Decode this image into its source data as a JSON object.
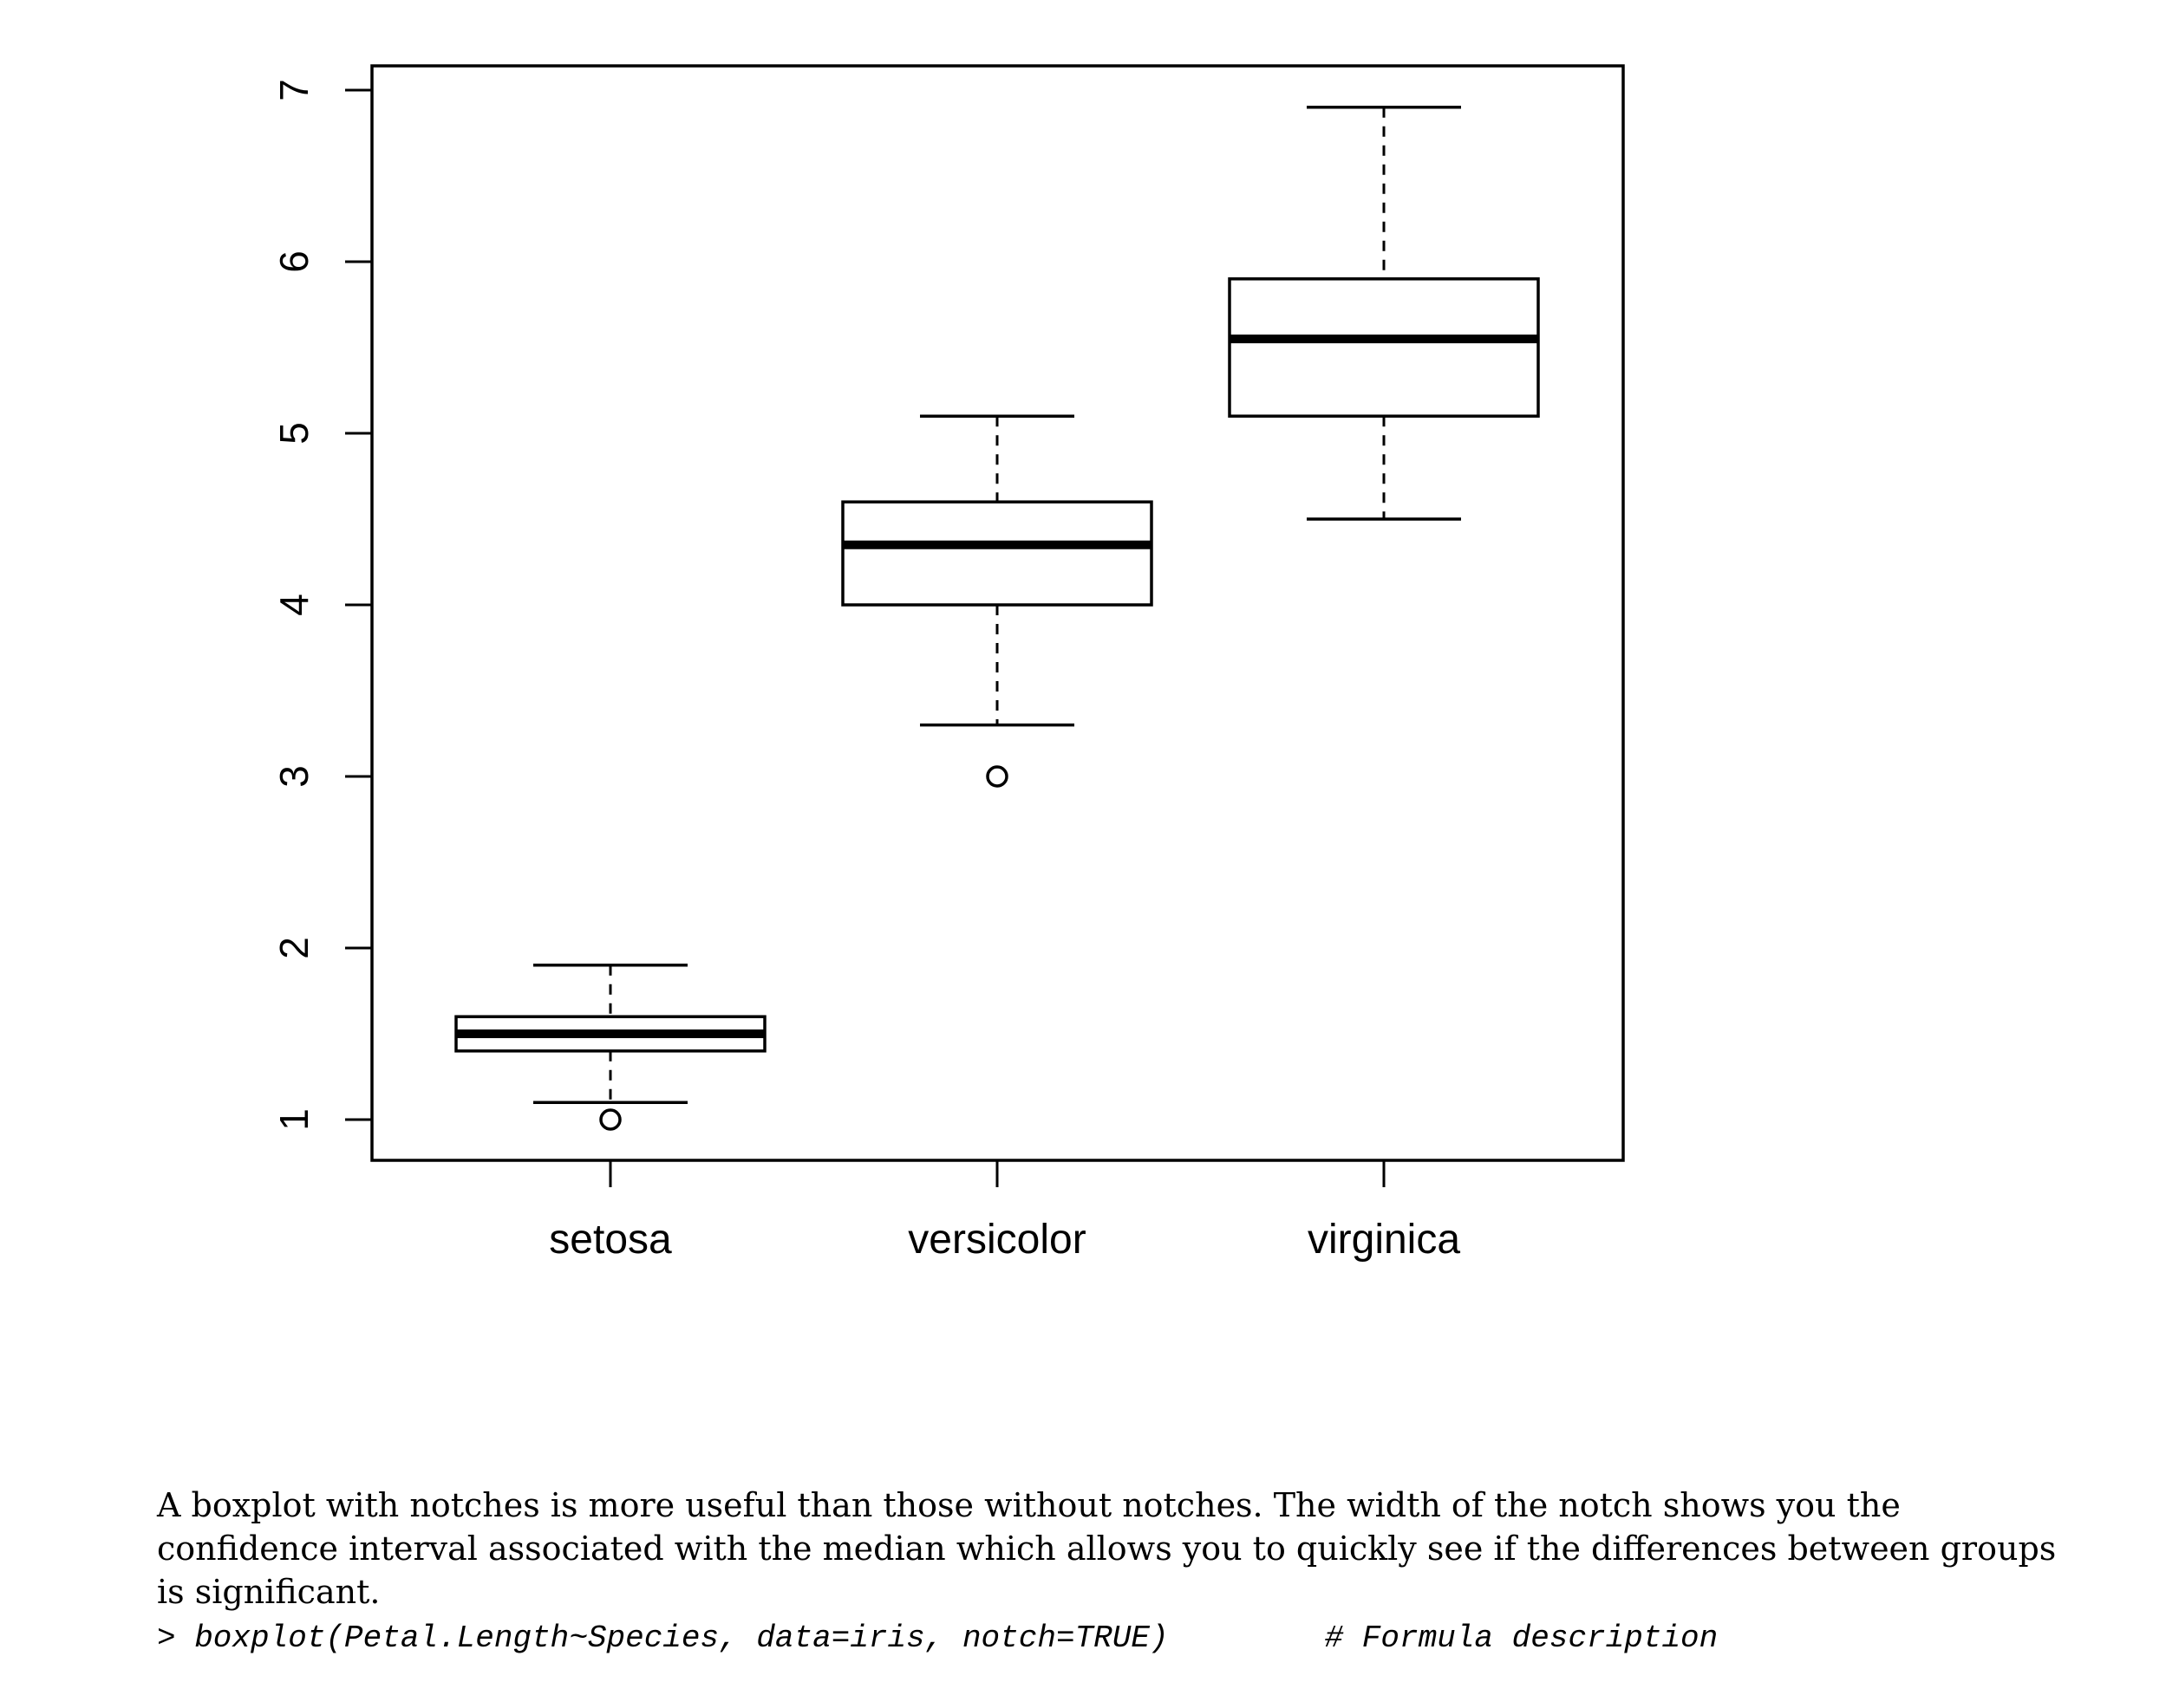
{
  "chart_data": {
    "type": "boxplot",
    "title": "",
    "xlabel": "",
    "ylabel": "",
    "ylim": [
      0.77,
      7.13
    ],
    "yticks": [
      1,
      2,
      3,
      4,
      5,
      6,
      7
    ],
    "categories": [
      "setosa",
      "versicolor",
      "virginica"
    ],
    "boxes": [
      {
        "name": "setosa",
        "whisker_low": 1.1,
        "q1": 1.4,
        "median": 1.5,
        "q3": 1.6,
        "whisker_high": 1.9,
        "outliers": [
          1.0
        ]
      },
      {
        "name": "versicolor",
        "whisker_low": 3.3,
        "q1": 4.0,
        "median": 4.35,
        "q3": 4.6,
        "whisker_high": 5.1,
        "outliers": [
          3.0
        ]
      },
      {
        "name": "virginica",
        "whisker_low": 4.5,
        "q1": 5.1,
        "median": 5.55,
        "q3": 5.9,
        "whisker_high": 6.9,
        "outliers": []
      }
    ]
  },
  "text": {
    "caption": "A boxplot with notches is more useful than those without notches. The width of the notch shows you the confidence interval associated with the median which allows you to quickly see if the differences between groups is significant.",
    "code": "> boxplot(Petal.Length~Species, data=iris, notch=TRUE)",
    "comment": "# Formula description"
  }
}
